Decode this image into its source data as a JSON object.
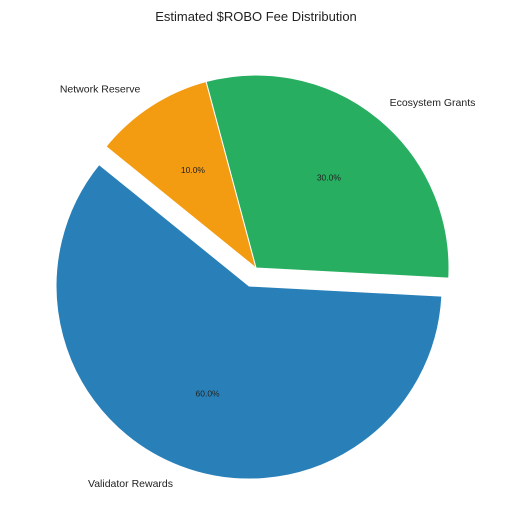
{
  "chart_data": {
    "type": "pie",
    "title": "Estimated $ROBO Fee Distribution",
    "slices": [
      {
        "label": "Ecosystem Grants",
        "value": 30.0,
        "pct_label": "30.0%",
        "color": "#27ae60",
        "exploded": false
      },
      {
        "label": "Network Reserve",
        "value": 10.0,
        "pct_label": "10.0%",
        "color": "#f39c12",
        "exploded": false
      },
      {
        "label": "Validator Rewards",
        "value": 60.0,
        "pct_label": "60.0%",
        "color": "#2980b9",
        "exploded": true
      }
    ],
    "start_angle_deg": -3,
    "direction": "counterclockwise",
    "edge_color": "#ffffff",
    "legend": "none"
  }
}
